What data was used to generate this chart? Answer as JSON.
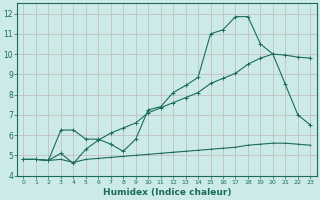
{
  "xlabel": "Humidex (Indice chaleur)",
  "xlim": [
    -0.5,
    23.5
  ],
  "ylim": [
    4,
    12.5
  ],
  "yticks": [
    4,
    5,
    6,
    7,
    8,
    9,
    10,
    11,
    12
  ],
  "xticks": [
    0,
    1,
    2,
    3,
    4,
    5,
    6,
    7,
    8,
    9,
    10,
    11,
    12,
    13,
    14,
    15,
    16,
    17,
    18,
    19,
    20,
    21,
    22,
    23
  ],
  "bg_color": "#cceae8",
  "grid_color": "#c0b8b8",
  "line_color": "#1a6b5e",
  "line1_x": [
    0,
    1,
    2,
    3,
    4,
    5,
    6,
    7,
    8,
    9,
    10,
    11,
    12,
    13,
    14,
    15,
    16,
    17,
    18,
    19,
    20,
    21,
    22,
    23
  ],
  "line1_y": [
    4.8,
    4.8,
    4.75,
    6.25,
    6.25,
    5.8,
    5.8,
    5.55,
    5.2,
    5.8,
    7.25,
    7.4,
    8.1,
    8.45,
    8.85,
    11.0,
    11.2,
    11.85,
    11.85,
    10.5,
    10.0,
    8.5,
    7.0,
    6.5
  ],
  "line2_x": [
    0,
    1,
    2,
    3,
    4,
    5,
    6,
    7,
    8,
    9,
    10,
    11,
    12,
    13,
    14,
    15,
    16,
    17,
    18,
    19,
    20,
    21,
    22,
    23
  ],
  "line2_y": [
    4.8,
    4.8,
    4.75,
    5.1,
    4.6,
    5.3,
    5.75,
    6.1,
    6.35,
    6.6,
    7.1,
    7.35,
    7.6,
    7.85,
    8.1,
    8.55,
    8.8,
    9.05,
    9.5,
    9.8,
    10.0,
    9.95,
    9.85,
    9.8
  ],
  "line3_x": [
    0,
    1,
    2,
    3,
    4,
    5,
    6,
    7,
    8,
    9,
    10,
    11,
    12,
    13,
    14,
    15,
    16,
    17,
    18,
    19,
    20,
    21,
    22,
    23
  ],
  "line3_y": [
    4.8,
    4.8,
    4.75,
    4.8,
    4.65,
    4.8,
    4.85,
    4.9,
    4.95,
    5.0,
    5.05,
    5.1,
    5.15,
    5.2,
    5.25,
    5.3,
    5.35,
    5.4,
    5.5,
    5.55,
    5.6,
    5.6,
    5.55,
    5.5
  ]
}
